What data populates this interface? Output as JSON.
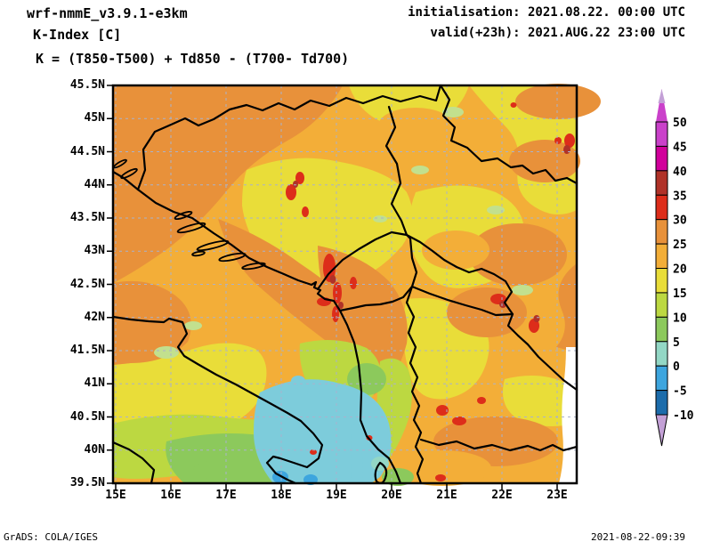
{
  "header": {
    "model": "wrf-nmmE_v3.9.1-e3km",
    "product": "K-Index [C]",
    "formula": "K = (T850-T500) + Td850 - (T700- Td700)",
    "init_label": "initialisation: 2021.08.22. 00:00 UTC",
    "valid_label": "valid(+23h): 2021.AUG.22 23:00 UTC"
  },
  "footer": {
    "credit": "GrADS: COLA/IGES",
    "timestamp": "2021-08-22-09:39"
  },
  "map": {
    "lat_ticks": [
      "45.5N",
      "45N",
      "44.5N",
      "44N",
      "43.5N",
      "43N",
      "42.5N",
      "42N",
      "41.5N",
      "41N",
      "40.5N",
      "40N",
      "39.5N"
    ],
    "lon_ticks": [
      "15E",
      "16E",
      "17E",
      "18E",
      "19E",
      "20E",
      "21E",
      "22E",
      "23E"
    ]
  },
  "colorbar": {
    "boundary_labels": [
      "50",
      "45",
      "40",
      "35",
      "30",
      "25",
      "20",
      "15",
      "10",
      "5",
      "0",
      "-5",
      "-10"
    ],
    "segment_colors": [
      "orchid",
      "magenta",
      "darkred",
      "red",
      "orange",
      "amber",
      "yellow",
      "ygreen",
      "green",
      "teal",
      "sky",
      "deepblue"
    ],
    "top_arrow_color": "plum",
    "bottom_arrow_color": "plum"
  },
  "palette": {
    "plum": "#c3a0d6",
    "orchid": "#ca41ca",
    "magenta": "#d1009b",
    "darkred": "#b03228",
    "red": "#dd2d1a",
    "orange": "#e8913a",
    "amber": "#f3ae38",
    "yellow": "#e9dd39",
    "ygreen": "#bcd841",
    "palegreen": "#c2e08e",
    "green": "#8cc95c",
    "teal": "#93d7c5",
    "cyan": "#7dccdb",
    "sky": "#3da5de",
    "deepblue": "#1c6cab",
    "void": "#ffffff",
    "grid": "#a9b2cc",
    "line": "#000000"
  }
}
